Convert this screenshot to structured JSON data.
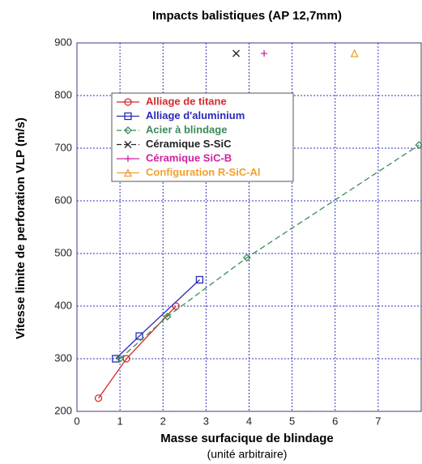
{
  "chart_data": {
    "type": "line",
    "title": "Impacts balistiques (AP 12,7mm)",
    "xlabel": "Masse surfacique de blindage",
    "xlabel_note": "(unité arbitraire)",
    "ylabel": "Vitesse limite de perforation VLP (m/s)",
    "xlim": [
      0,
      8
    ],
    "ylim": [
      200,
      900
    ],
    "xticks": [
      0,
      1,
      2,
      3,
      4,
      5,
      6,
      7
    ],
    "yticks": [
      200,
      300,
      400,
      500,
      600,
      700,
      800,
      900
    ],
    "grid": true,
    "legend": "upper left",
    "series": [
      {
        "name": "Alliage de titane",
        "color": "#d22a2a",
        "marker": "circle",
        "dashed": false,
        "x": [
          0.5,
          1.15,
          2.3
        ],
        "values": [
          225,
          300,
          400
        ]
      },
      {
        "name": "Alliage d'aluminium",
        "color": "#2a2ab8",
        "marker": "square",
        "dashed": false,
        "x": [
          0.9,
          1.45,
          2.85
        ],
        "values": [
          300,
          343,
          450
        ]
      },
      {
        "name": "Acier à blindage",
        "color": "#3a8a5a",
        "marker": "diamond",
        "dashed": true,
        "x": [
          1.0,
          2.1,
          3.95,
          7.95
        ],
        "values": [
          300,
          380,
          492,
          706
        ]
      },
      {
        "name": "Céramique S-SiC",
        "color": "#222222",
        "marker": "x",
        "dashed": true,
        "x": [
          3.7
        ],
        "values": [
          880
        ]
      },
      {
        "name": "Céramique SiC-B",
        "color": "#d020a0",
        "marker": "plus",
        "dashed": false,
        "x": [
          4.35
        ],
        "values": [
          880
        ]
      },
      {
        "name": "Configuration R-SiC-Al",
        "color": "#f0a030",
        "marker": "triangle",
        "dashed": false,
        "x": [
          6.45
        ],
        "values": [
          880
        ]
      }
    ]
  }
}
